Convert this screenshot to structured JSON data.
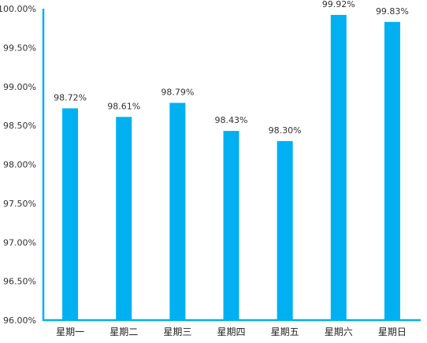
{
  "chart_data": {
    "type": "bar",
    "categories": [
      "星期一",
      "星期二",
      "星期三",
      "星期四",
      "星期五",
      "星期六",
      "星期日"
    ],
    "values": [
      98.72,
      98.61,
      98.79,
      98.43,
      98.3,
      99.92,
      99.83
    ],
    "data_labels": [
      "98.72%",
      "98.61%",
      "98.79%",
      "98.43%",
      "98.30%",
      "99.92%",
      "99.83%"
    ],
    "y_ticks": [
      "96.00%",
      "96.50%",
      "97.00%",
      "97.50%",
      "98.00%",
      "98.50%",
      "99.00%",
      "99.50%",
      "100.00%"
    ],
    "ylim": [
      96,
      100
    ],
    "grid": false,
    "legend": "none",
    "bar_color": "#00B0F0",
    "axis_color": "#00B0F0"
  }
}
